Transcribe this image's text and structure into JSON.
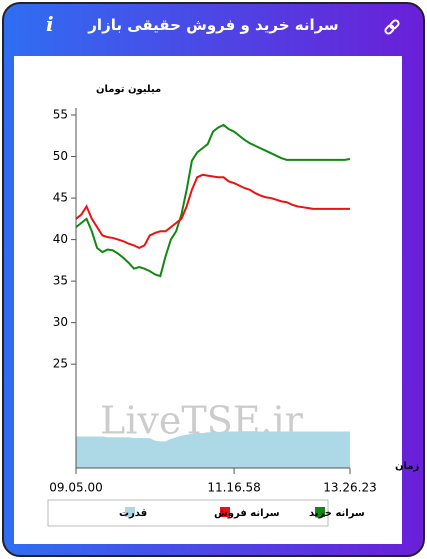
{
  "header": {
    "title": "سرانه خرید و فروش حقیقی بازار",
    "info": "i"
  },
  "chart_data": {
    "type": "line",
    "y_label": "میلیون تومان",
    "x_label": "زمان",
    "watermark": "LiveTSE.ir",
    "categories": [
      "09.05.00",
      null,
      null,
      null,
      null,
      null,
      null,
      null,
      null,
      null,
      null,
      null,
      null,
      null,
      null,
      null,
      null,
      null,
      null,
      null,
      null,
      null,
      null,
      null,
      null,
      null,
      null,
      null,
      null,
      null,
      "11.16.58",
      null,
      null,
      null,
      null,
      null,
      null,
      null,
      null,
      null,
      null,
      null,
      null,
      null,
      null,
      null,
      null,
      null,
      null,
      null,
      null,
      null,
      "13.26.23"
    ],
    "ylim": [
      12.5,
      55
    ],
    "yticks": [
      25,
      30,
      35,
      40,
      45,
      50,
      55
    ],
    "grid": false,
    "legend": "bottom",
    "series": [
      {
        "name": "سرانه خرید",
        "color": "#118811",
        "style": "line",
        "values": [
          41.5,
          42,
          42.5,
          41,
          39,
          38.5,
          38.8,
          38.7,
          38.3,
          37.8,
          37.2,
          36.5,
          36.7,
          36.5,
          36.2,
          35.8,
          35.6,
          38,
          40,
          41,
          43,
          46,
          49.5,
          50.5,
          51,
          51.5,
          53,
          53.5,
          53.8,
          53.3,
          53,
          52.5,
          52,
          51.6,
          51.3,
          51,
          50.7,
          50.4,
          50.1,
          49.8,
          49.6,
          49.6,
          49.6,
          49.6,
          49.6,
          49.6,
          49.6,
          49.6,
          49.6,
          49.6,
          49.6,
          49.6,
          49.7
        ]
      },
      {
        "name": "سرانه فروش",
        "color": "#ee1111",
        "style": "line",
        "values": [
          42.5,
          43,
          44,
          42.5,
          41.5,
          40.5,
          40.3,
          40.2,
          40,
          39.8,
          39.5,
          39.3,
          39,
          39.3,
          40.5,
          40.8,
          41,
          41,
          41.5,
          42,
          42.5,
          44,
          46,
          47.5,
          47.8,
          47.7,
          47.6,
          47.5,
          47.5,
          47,
          46.8,
          46.5,
          46.2,
          46,
          45.6,
          45.3,
          45.1,
          45,
          44.8,
          44.6,
          44.5,
          44.2,
          44,
          43.9,
          43.8,
          43.7,
          43.7,
          43.7,
          43.7,
          43.7,
          43.7,
          43.7,
          43.7
        ]
      },
      {
        "name": "قدرت",
        "color": "#add8e6",
        "style": "area",
        "values": [
          16.3,
          16.3,
          16.3,
          16.3,
          16.3,
          16.3,
          16.2,
          16.2,
          16.2,
          16.2,
          16.2,
          16.1,
          16.1,
          16.1,
          16.1,
          15.8,
          15.7,
          15.7,
          16,
          16.2,
          16.4,
          16.5,
          16.6,
          16.7,
          16.7,
          16.8,
          16.8,
          16.8,
          16.9,
          16.9,
          16.9,
          16.9,
          16.9,
          16.9,
          16.9,
          16.9,
          16.9,
          16.9,
          16.9,
          16.9,
          16.9,
          16.9,
          16.9,
          16.9,
          16.9,
          16.9,
          16.9,
          16.9,
          16.9,
          16.9,
          16.9,
          16.9,
          16.9
        ]
      }
    ]
  }
}
